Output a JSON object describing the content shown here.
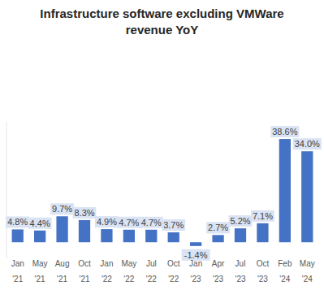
{
  "chart_data": {
    "type": "bar",
    "title": "Infrastructure software excluding VMWare revenue YoY",
    "categories": [
      "Jan '21",
      "May '21",
      "Aug '21",
      "Oct '21",
      "Jan '22",
      "May '22",
      "Jul '22",
      "Oct '22",
      "Jan '23",
      "Apr '23",
      "Jul '23",
      "Oct '23",
      "Feb '24",
      "May '24"
    ],
    "values": [
      4.8,
      4.4,
      9.7,
      8.3,
      4.9,
      4.7,
      4.7,
      3.7,
      -1.4,
      2.7,
      5.2,
      7.1,
      38.6,
      34.0
    ],
    "value_labels": [
      "4.8%",
      "4.4%",
      "9.7%",
      "8.3%",
      "4.9%",
      "4.7%",
      "4.7%",
      "3.7%",
      "-1.4%",
      "2.7%",
      "5.2%",
      "7.1%",
      "38.6%",
      "34.0%"
    ],
    "color": "#4472c4",
    "ylim": [
      -6,
      45
    ],
    "data_labels": true,
    "tick_labels": "x",
    "grid": false
  }
}
